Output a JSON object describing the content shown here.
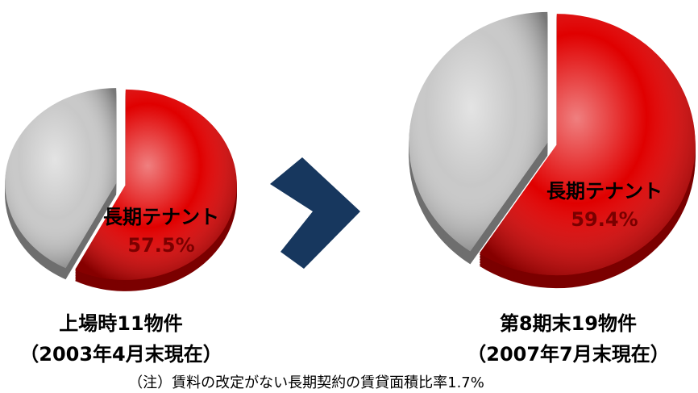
{
  "chart_data": [
    {
      "type": "pie",
      "title": "上場時11物件",
      "subtitle": "（2003年4月末現在）",
      "categories": [
        "長期テナント",
        null
      ],
      "values": [
        57.5,
        42.5
      ],
      "value_labels": [
        "57.5%",
        null
      ],
      "colors": [
        "#e00000",
        "#c8c8c8"
      ]
    },
    {
      "type": "pie",
      "title": "第8期末19物件",
      "subtitle": "（2007年7月末現在）",
      "categories": [
        "長期テナント",
        null
      ],
      "values": [
        59.4,
        40.6
      ],
      "value_labels": [
        "59.4%",
        null
      ],
      "colors": [
        "#e00000",
        "#c8c8c8"
      ]
    }
  ],
  "note": "（注）賃料の改定がない長期契約の賃貸面積比率1.7%"
}
